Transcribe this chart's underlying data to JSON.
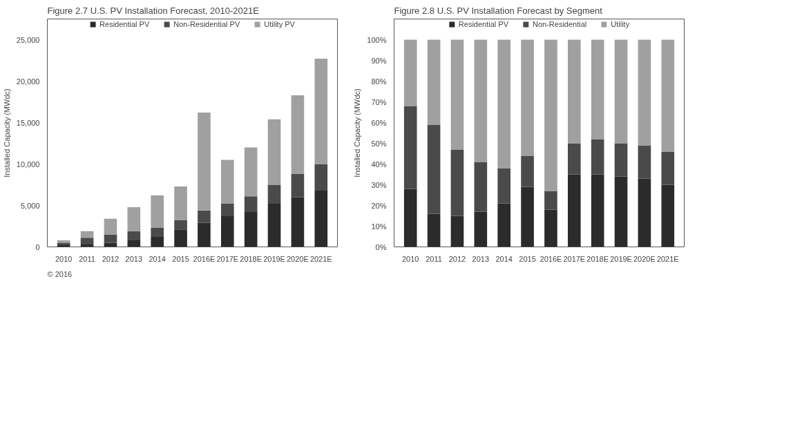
{
  "chart_data": [
    {
      "type": "bar",
      "title": "Figure 2.7 U.S. PV Installation Forecast, 2010-2021E",
      "ylabel": "Installed Capacity (MWdc)",
      "stacked": true,
      "legend": "top",
      "grid": false,
      "categories": [
        "2010",
        "2011",
        "2012",
        "2013",
        "2014",
        "2015",
        "2016E",
        "2017E",
        "2018E",
        "2019E",
        "2020E",
        "2021E"
      ],
      "ylim": [
        0,
        27500
      ],
      "yticks": [
        0,
        {
          "value": 5000,
          "label": "5,000"
        },
        {
          "value": 10000,
          "label": "10,000"
        },
        {
          "value": 15000,
          "label": "15,000"
        },
        {
          "value": 20000,
          "label": "20,000"
        },
        {
          "value": 25000,
          "label": "25,000"
        }
      ],
      "series": [
        {
          "name": "Residential PV",
          "color": "#2b2b2b",
          "values": [
            200,
            300,
            500,
            800,
            1200,
            2100,
            2900,
            3700,
            4200,
            5200,
            6000,
            6800
          ]
        },
        {
          "name": "Non-Residential PV",
          "color": "#4a4a4a",
          "values": [
            300,
            800,
            1000,
            1100,
            1100,
            1100,
            1500,
            1500,
            1900,
            2300,
            2800,
            3200
          ]
        },
        {
          "name": "Utility PV",
          "color": "#a0a0a0",
          "values": [
            300,
            800,
            1900,
            2900,
            3900,
            4100,
            11800,
            5300,
            5900,
            7900,
            9500,
            12700
          ]
        }
      ],
      "annotations": [
        "© 2016"
      ]
    },
    {
      "type": "bar",
      "title": "Figure 2.8 U.S. PV Installation Forecast by Segment",
      "ylabel": "Installed Capacity (MWdc)",
      "stacked": true,
      "legend": "top",
      "grid": false,
      "categories": [
        "2010",
        "2011",
        "2012",
        "2013",
        "2014",
        "2015",
        "2016E",
        "2017E",
        "2018E",
        "2019E",
        "2020E",
        "2021E"
      ],
      "ylim": [
        0,
        110
      ],
      "yticks": [
        {
          "value": 0,
          "label": "0%"
        },
        {
          "value": 10,
          "label": "10%"
        },
        {
          "value": 20,
          "label": "20%"
        },
        {
          "value": 30,
          "label": "30%"
        },
        {
          "value": 40,
          "label": "40%"
        },
        {
          "value": 50,
          "label": "50%"
        },
        {
          "value": 60,
          "label": "60%"
        },
        {
          "value": 70,
          "label": "70%"
        },
        {
          "value": 80,
          "label": "80%"
        },
        {
          "value": 90,
          "label": "90%"
        },
        {
          "value": 100,
          "label": "100%"
        }
      ],
      "series": [
        {
          "name": "Residential PV",
          "color": "#2b2b2b",
          "values": [
            28,
            16,
            15,
            17,
            21,
            29,
            18,
            35,
            35,
            34,
            33,
            30
          ]
        },
        {
          "name": "Non-Residential",
          "color": "#4a4a4a",
          "values": [
            40,
            43,
            32,
            24,
            17,
            15,
            9,
            15,
            17,
            16,
            16,
            16
          ]
        },
        {
          "name": "Utility",
          "color": "#a0a0a0",
          "values": [
            32,
            41,
            53,
            59,
            62,
            56,
            73,
            50,
            48,
            50,
            51,
            54
          ]
        }
      ]
    }
  ]
}
